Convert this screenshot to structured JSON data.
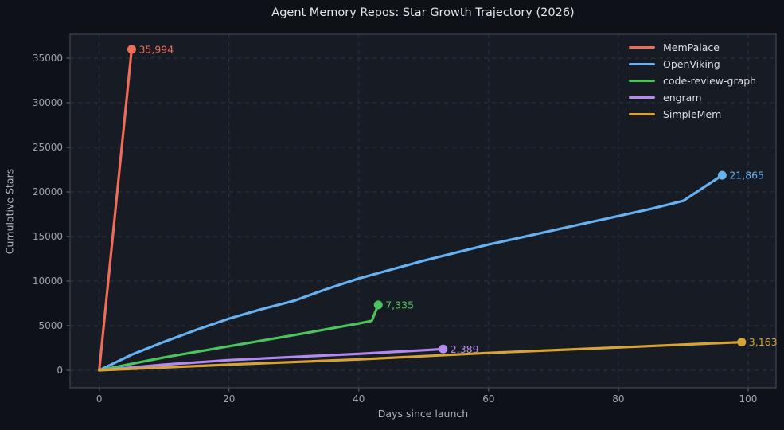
{
  "title": "Agent Memory Repos: Star Growth Trajectory (2026)",
  "colors": {
    "figure_background": "#0e1117",
    "plot_background": "#161b24",
    "grid": "#2f3541",
    "spine": "#3e4553",
    "tick_mark": "#5a606c",
    "tick_text": "#9ba3ae",
    "title_text": "#e3e6ea",
    "axis_label_text": "#aeb4bf",
    "legend_text": "#dbdee3"
  },
  "chart_data": {
    "type": "line",
    "title": "Agent Memory Repos: Star Growth Trajectory (2026)",
    "xlabel": "Days since launch",
    "ylabel": "Cumulative Stars",
    "xlim": [
      -4.5,
      104.3
    ],
    "ylim": [
      -1960,
      37680
    ],
    "x_ticks": [
      0,
      20,
      40,
      60,
      80,
      100
    ],
    "x_tick_labels": [
      "0",
      "20",
      "40",
      "60",
      "80",
      "100"
    ],
    "y_ticks": [
      0,
      5000,
      10000,
      15000,
      20000,
      25000,
      30000,
      35000
    ],
    "y_tick_labels": [
      "0",
      "5000",
      "10000",
      "15000",
      "20000",
      "25000",
      "30000",
      "35000"
    ],
    "grid": true,
    "grid_style": "dashed",
    "legend_position": "upper right",
    "series": [
      {
        "name": "MemPalace",
        "color": "#ed6d57",
        "x": [
          0,
          5
        ],
        "y": [
          0,
          35994
        ],
        "final_value": 35994,
        "end_label": "35,994"
      },
      {
        "name": "OpenViking",
        "color": "#67b1f0",
        "x": [
          0,
          5,
          10,
          15,
          20,
          25,
          30,
          35,
          40,
          45,
          50,
          55,
          60,
          65,
          70,
          75,
          80,
          85,
          90,
          96
        ],
        "y": [
          0,
          1750,
          3200,
          4550,
          5800,
          6850,
          7800,
          9100,
          10300,
          11300,
          12300,
          13200,
          14100,
          14900,
          15700,
          16500,
          17300,
          18100,
          19000,
          21865
        ],
        "final_value": 21865,
        "end_label": "21,865"
      },
      {
        "name": "code-review-graph",
        "color": "#4cc35c",
        "x": [
          0,
          10,
          20,
          30,
          40,
          42,
          43
        ],
        "y": [
          0,
          1450,
          2700,
          3950,
          5250,
          5550,
          7335
        ],
        "final_value": 7335,
        "end_label": "7,335"
      },
      {
        "name": "engram",
        "color": "#b58af0",
        "x": [
          0,
          10,
          20,
          30,
          40,
          50,
          53
        ],
        "y": [
          0,
          640,
          1150,
          1500,
          1850,
          2250,
          2389
        ],
        "final_value": 2389,
        "end_label": "2,389"
      },
      {
        "name": "SimpleMem",
        "color": "#d6a337",
        "x": [
          0,
          20,
          40,
          60,
          80,
          99
        ],
        "y": [
          0,
          640,
          1230,
          1950,
          2570,
          3163
        ],
        "final_value": 3163,
        "end_label": "3,163"
      }
    ]
  }
}
